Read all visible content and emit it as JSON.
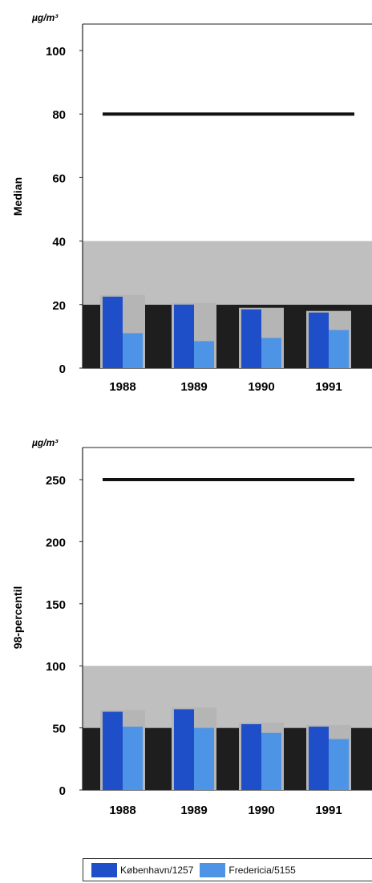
{
  "chart_data": [
    {
      "type": "bar",
      "unit_label": "µg/m³",
      "ylabel": "Median",
      "categories": [
        "1988",
        "1989",
        "1990",
        "1991"
      ],
      "ylim": [
        0,
        100
      ],
      "yticks": [
        0,
        20,
        40,
        60,
        80,
        100
      ],
      "limit_line": 80,
      "background_bands": [
        {
          "from": 0,
          "to": 20,
          "color": "#1e1e1e"
        },
        {
          "from": 20,
          "to": 40,
          "color": "#bfbfbf"
        }
      ],
      "series": [
        {
          "name": "København/1257",
          "values": [
            22.5,
            20,
            18.5,
            17.5
          ],
          "color": "#1f4fc8"
        },
        {
          "name": "Fredericia/5155",
          "values": [
            11,
            8.5,
            9.5,
            12
          ],
          "color": "#4e94e6"
        }
      ]
    },
    {
      "type": "bar",
      "unit_label": "µg/m³",
      "ylabel": "98-percentil",
      "categories": [
        "1988",
        "1989",
        "1990",
        "1991"
      ],
      "ylim": [
        0,
        250
      ],
      "yticks": [
        0,
        50,
        100,
        150,
        200,
        250
      ],
      "limit_line": 250,
      "background_bands": [
        {
          "from": 0,
          "to": 50,
          "color": "#1e1e1e"
        },
        {
          "from": 50,
          "to": 100,
          "color": "#bfbfbf"
        }
      ],
      "series": [
        {
          "name": "København/1257",
          "values": [
            63,
            65,
            53,
            51
          ],
          "color": "#1f4fc8"
        },
        {
          "name": "Fredericia/5155",
          "values": [
            51,
            50,
            46,
            41
          ],
          "color": "#4e94e6"
        }
      ]
    }
  ],
  "legend": {
    "items": [
      {
        "label": "København/1257",
        "color": "#1f4fc8"
      },
      {
        "label": "Fredericia/5155",
        "color": "#4e94e6"
      }
    ]
  }
}
